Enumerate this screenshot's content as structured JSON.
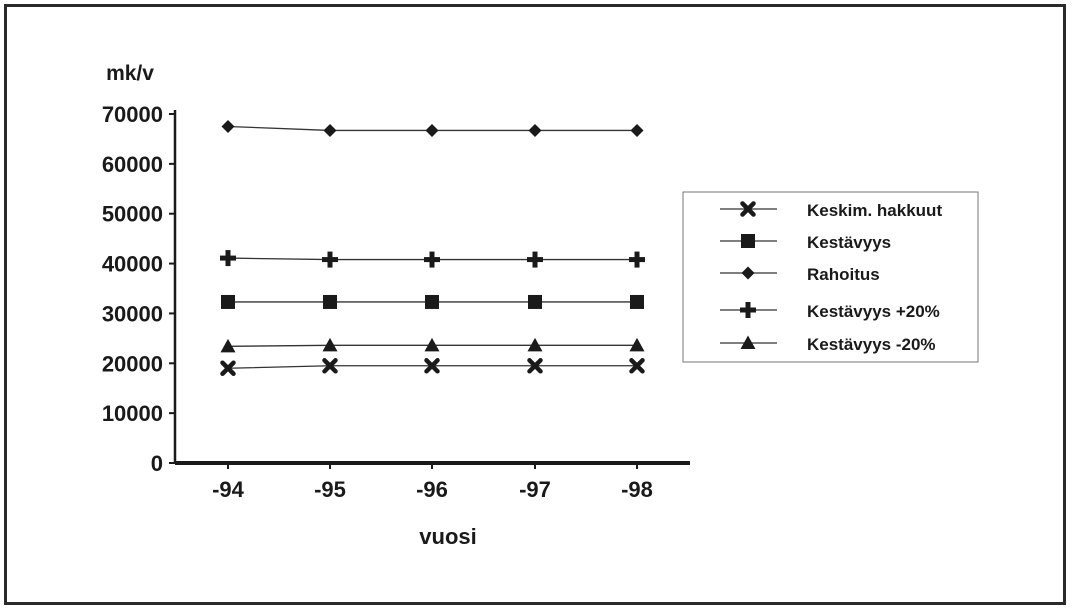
{
  "chart_data": {
    "type": "line",
    "title": "",
    "xlabel": "vuosi",
    "ylabel": "mk/v",
    "categories": [
      "-94",
      "-95",
      "-96",
      "-97",
      "-98"
    ],
    "ylim": [
      0,
      70000
    ],
    "yticks": [
      0,
      10000,
      20000,
      30000,
      40000,
      50000,
      60000,
      70000
    ],
    "grid": false,
    "legend_position": "right",
    "series": [
      {
        "name": "Keskim. hakkuut",
        "marker": "x",
        "values": [
          19000,
          19500,
          19500,
          19500,
          19500
        ]
      },
      {
        "name": "Kestävyys",
        "marker": "square",
        "values": [
          32300,
          32300,
          32300,
          32300,
          32300
        ]
      },
      {
        "name": "Rahoitus",
        "marker": "diamond",
        "values": [
          67500,
          66700,
          66700,
          66700,
          66700
        ]
      },
      {
        "name": "Kestävyys +20%",
        "marker": "plus",
        "values": [
          41100,
          40800,
          40800,
          40800,
          40800
        ]
      },
      {
        "name": "Kestävyys -20%",
        "marker": "triangle",
        "values": [
          23400,
          23600,
          23600,
          23600,
          23600
        ]
      }
    ]
  },
  "colors": {
    "ink": "#1a1a1a",
    "line": "#333333",
    "background": "#ffffff"
  }
}
